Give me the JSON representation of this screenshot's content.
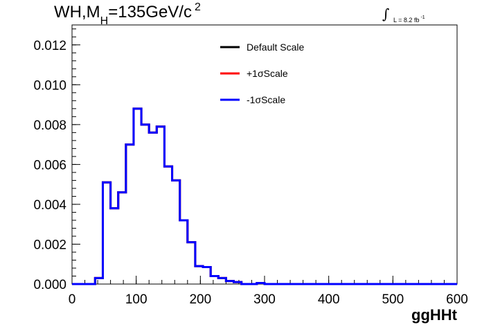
{
  "title": {
    "main": "WH,M",
    "sub": "H",
    "rest": "=135GeV/c",
    "sup": "2"
  },
  "luminosity": {
    "integral": "∫",
    "text": "L = 8.2 fb",
    "sup": "-1"
  },
  "chart_data": {
    "type": "line",
    "xlabel": "ggHHt",
    "ylabel": "",
    "xlim": [
      0,
      600
    ],
    "ylim": [
      0,
      0.013
    ],
    "x_ticks": [
      "0",
      "100",
      "200",
      "300",
      "400",
      "500",
      "600"
    ],
    "y_ticks": [
      "0.000",
      "0.002",
      "0.004",
      "0.006",
      "0.008",
      "0.010",
      "0.012"
    ],
    "bin_width": 12,
    "bin_edges_start": 0,
    "legend_position": "top-right",
    "series": [
      {
        "name": "Default Scale",
        "color": "#000000",
        "values": [
          0,
          0,
          0,
          0.0003,
          0.0051,
          0.0038,
          0.0046,
          0.007,
          0.0088,
          0.008,
          0.0076,
          0.0079,
          0.0059,
          0.0052,
          0.0032,
          0.0021,
          0.0009,
          0.00085,
          0.0004,
          0.0003,
          0.00015,
          0.0001,
          0,
          0,
          5e-05,
          0,
          0,
          0,
          0,
          0,
          0,
          0,
          0,
          0,
          0,
          0,
          0,
          0,
          0,
          0,
          0,
          0,
          0,
          0,
          0,
          0,
          0,
          0,
          0,
          0
        ]
      },
      {
        "name": "+1σScale",
        "color": "#ff0000",
        "values": [
          0,
          0,
          0,
          0.0003,
          0.0051,
          0.0038,
          0.0046,
          0.007,
          0.0088,
          0.008,
          0.0076,
          0.0079,
          0.0059,
          0.0052,
          0.0032,
          0.0021,
          0.0009,
          0.00085,
          0.0004,
          0.0003,
          0.00015,
          0.0001,
          0,
          0,
          5e-05,
          0,
          0,
          0,
          0,
          0,
          0,
          0,
          0,
          0,
          0,
          0,
          0,
          0,
          0,
          0,
          0,
          0,
          0,
          0,
          0,
          0,
          0,
          0,
          0,
          0
        ]
      },
      {
        "name": "-1σScale",
        "color": "#0000ff",
        "values": [
          0,
          0,
          0,
          0.0003,
          0.0051,
          0.0038,
          0.0046,
          0.007,
          0.0088,
          0.008,
          0.0076,
          0.0079,
          0.0059,
          0.0052,
          0.0032,
          0.0021,
          0.0009,
          0.00085,
          0.0004,
          0.0003,
          0.00015,
          0.0001,
          0,
          0,
          5e-05,
          0,
          0,
          0,
          0,
          0,
          0,
          0,
          0,
          0,
          0,
          0,
          0,
          0,
          0,
          0,
          0,
          0,
          0,
          0,
          0,
          0,
          0,
          0,
          0,
          0
        ]
      }
    ]
  }
}
